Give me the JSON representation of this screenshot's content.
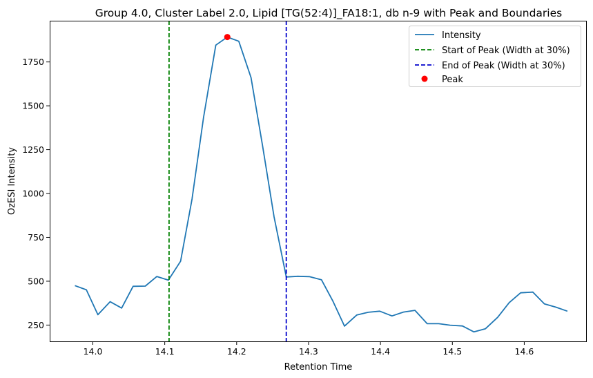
{
  "chart_data": {
    "type": "line",
    "title": "Group 4.0, Cluster Label 2.0, Lipid [TG(52:4)]_FA18:1, db n-9 with Peak and Boundaries",
    "xlabel": "Retention Time",
    "ylabel": "OzESI Intensity",
    "xlim": [
      13.94,
      14.686
    ],
    "ylim": [
      157,
      1985
    ],
    "xticks": [
      14.0,
      14.1,
      14.2,
      14.3,
      14.4,
      14.5,
      14.6
    ],
    "xtick_labels": [
      "14.0",
      "14.1",
      "14.2",
      "14.3",
      "14.4",
      "14.5",
      "14.6"
    ],
    "yticks": [
      250,
      500,
      750,
      1000,
      1250,
      1500,
      1750
    ],
    "ytick_labels": [
      "250",
      "500",
      "750",
      "1000",
      "1250",
      "1500",
      "1750"
    ],
    "grid": false,
    "legend_position": "top-right",
    "series": [
      {
        "name": "Intensity",
        "color": "#1f77b4",
        "x": [
          13.975,
          13.991,
          14.007,
          14.024,
          14.04,
          14.056,
          14.073,
          14.089,
          14.105,
          14.122,
          14.138,
          14.154,
          14.171,
          14.187,
          14.203,
          14.22,
          14.236,
          14.252,
          14.269,
          14.285,
          14.301,
          14.318,
          14.334,
          14.35,
          14.367,
          14.383,
          14.399,
          14.416,
          14.432,
          14.448,
          14.465,
          14.481,
          14.497,
          14.514,
          14.53,
          14.546,
          14.563,
          14.579,
          14.595,
          14.612,
          14.628,
          14.644,
          14.66
        ],
        "y": [
          475,
          451,
          309,
          383,
          347,
          471,
          472,
          527,
          506,
          614,
          969,
          1435,
          1846,
          1892,
          1868,
          1661,
          1273,
          867,
          524,
          528,
          526,
          508,
          385,
          244,
          307,
          323,
          329,
          302,
          324,
          334,
          258,
          258,
          249,
          245,
          211,
          229,
          294,
          378,
          434,
          438,
          371,
          352,
          329
        ]
      }
    ],
    "vlines": [
      {
        "name": "Start of Peak (Width at 30%)",
        "x": 14.106,
        "color": "#008000",
        "style": "dashed"
      },
      {
        "name": "End of Peak (Width at 30%)",
        "x": 14.269,
        "color": "#0000cc",
        "style": "dashed"
      }
    ],
    "peak": {
      "name": "Peak",
      "x": 14.187,
      "y": 1892,
      "color": "#ff0000"
    }
  }
}
